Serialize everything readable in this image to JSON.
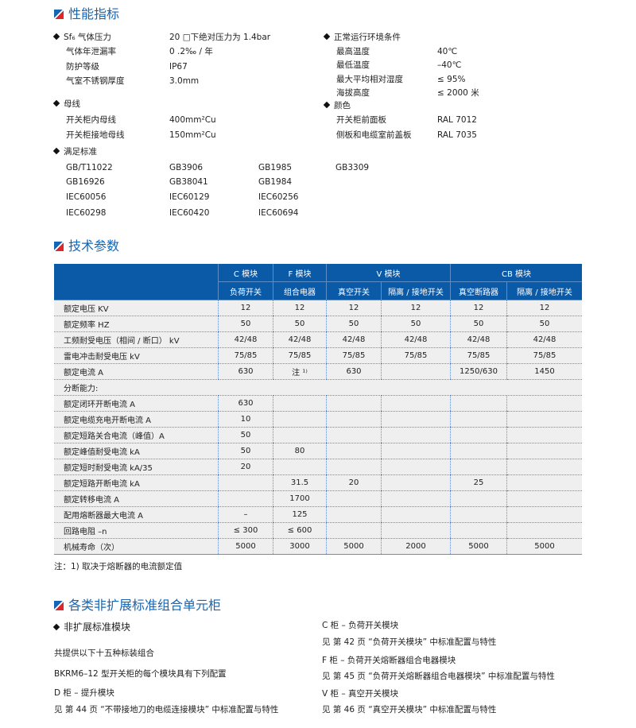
{
  "sections": {
    "performance": "性能指标",
    "tech": "技术参数",
    "units": "各类非扩展标准组合单元柜"
  },
  "perf_left": [
    {
      "head": "Sf₆ 气体压力",
      "value": "20 □下绝对压力为 1.4bar"
    },
    {
      "label": "气体年泄漏率",
      "value": "0 .2‰ / 年"
    },
    {
      "label": "防护等级",
      "value": "IP67"
    },
    {
      "label": "气室不锈钢厚度",
      "value": "3.0mm"
    }
  ],
  "busbar": {
    "head": "母线",
    "rows": [
      {
        "label": "开关柜内母线",
        "value": "400mm²Cu"
      },
      {
        "label": "开关柜接地母线",
        "value": "150mm²Cu"
      }
    ]
  },
  "env": {
    "head": "正常运行环境条件",
    "rows": [
      {
        "label": "最高温度",
        "value": "40℃"
      },
      {
        "label": "最低温度",
        "value": "–40℃"
      },
      {
        "label": "最大平均相对湿度",
        "value": "≤ 95%"
      },
      {
        "label": "海拔高度",
        "value": "≤ 2000 米"
      }
    ]
  },
  "color": {
    "head": "颜色",
    "rows": [
      {
        "label": "开关柜前面板",
        "value": "RAL 7012"
      },
      {
        "label": "侧板和电缆室前盖板",
        "value": "RAL 7035"
      }
    ]
  },
  "standards": {
    "head": "满足标准",
    "rows": [
      [
        "GB/T11022",
        "GB3906",
        "GB1985",
        "GB3309"
      ],
      [
        "GB16926",
        "GB38041",
        "GB1984",
        ""
      ],
      [
        "IEC60056",
        "IEC60129",
        "IEC60256",
        ""
      ],
      [
        "IEC60298",
        "IEC60420",
        "IEC60694",
        ""
      ]
    ]
  },
  "table": {
    "groups": [
      "C 模块",
      "F 模块",
      "V 模块",
      "CB 模块"
    ],
    "subs": [
      "负荷开关",
      "组合电器",
      "真空开关",
      "隔离 / 接地开关",
      "真空断路器",
      "隔离 / 接地开关"
    ],
    "rows": [
      [
        "额定电压 KV",
        "12",
        "12",
        "12",
        "12",
        "12",
        "12"
      ],
      [
        "额定频率 HZ",
        "50",
        "50",
        "50",
        "50",
        "50",
        "50"
      ],
      [
        "工频耐受电压（相间 / 断口） kV",
        "42/48",
        "42/48",
        "42/48",
        "42/48",
        "42/48",
        "42/48"
      ],
      [
        "雷电冲击耐受电压 kV",
        "75/85",
        "75/85",
        "75/85",
        "75/85",
        "75/85",
        "75/85"
      ],
      [
        "额定电流 A",
        "630",
        "注 ¹⁾",
        "630",
        "",
        "1250/630",
        "1450"
      ],
      [
        "分断能力:"
      ],
      [
        "额定闭环开断电流 A",
        "630",
        "",
        "",
        "",
        "",
        ""
      ],
      [
        "额定电缆充电开断电流 A",
        "10",
        "",
        "",
        "",
        "",
        ""
      ],
      [
        "额定短路关合电流（峰值）A",
        "50",
        "",
        "",
        "",
        "",
        ""
      ],
      [
        "额定峰值耐受电流 kA",
        "50",
        "80",
        "",
        "",
        "",
        ""
      ],
      [
        "额定短时耐受电流 kA/35",
        "20",
        "",
        "",
        "",
        "",
        ""
      ],
      [
        "额定短路开断电流 kA",
        "",
        "31.5",
        "20",
        "",
        "25",
        ""
      ],
      [
        "额定转移电流 A",
        "",
        "1700",
        "",
        "",
        "",
        ""
      ],
      [
        "配用熔断器最大电流 A",
        "–",
        "125",
        "",
        "",
        "",
        ""
      ],
      [
        "回路电阻 –n",
        "≤ 300",
        "≤ 600",
        "",
        "",
        "",
        ""
      ],
      [
        "机械寿命（次）",
        "5000",
        "3000",
        "5000",
        "2000",
        "5000",
        "5000"
      ]
    ],
    "note": "注：1) 取决于熔断器的电流额定值"
  },
  "units": {
    "subhead": "非扩展标准模块",
    "left": [
      "共提供以下十五种标装组合",
      "BKRM6–12 型开关柜的每个模块具有下列配置",
      "D 柜 – 提升模块",
      "见 第 44 页 “不带接地刀的电缆连接模块” 中标准配置与特性"
    ],
    "right": [
      "C 柜 – 负荷开关模块",
      "见 第 42 页 “负荷开关模块” 中标准配置与特性",
      "F 柜 – 负荷开关熔断器组合电器模块",
      "见 第 45 页 “负荷开关熔断器组合电器模块” 中标准配置与特性",
      "V 柜 – 真空开关模块",
      "见 第 46 页 “真空开关模块” 中标准配置与特性"
    ]
  },
  "colors": {
    "accent": "#1565b5",
    "header_bg": "#0b5aa8",
    "row_bg": "#efefef",
    "icon_red": "#e0262b"
  }
}
